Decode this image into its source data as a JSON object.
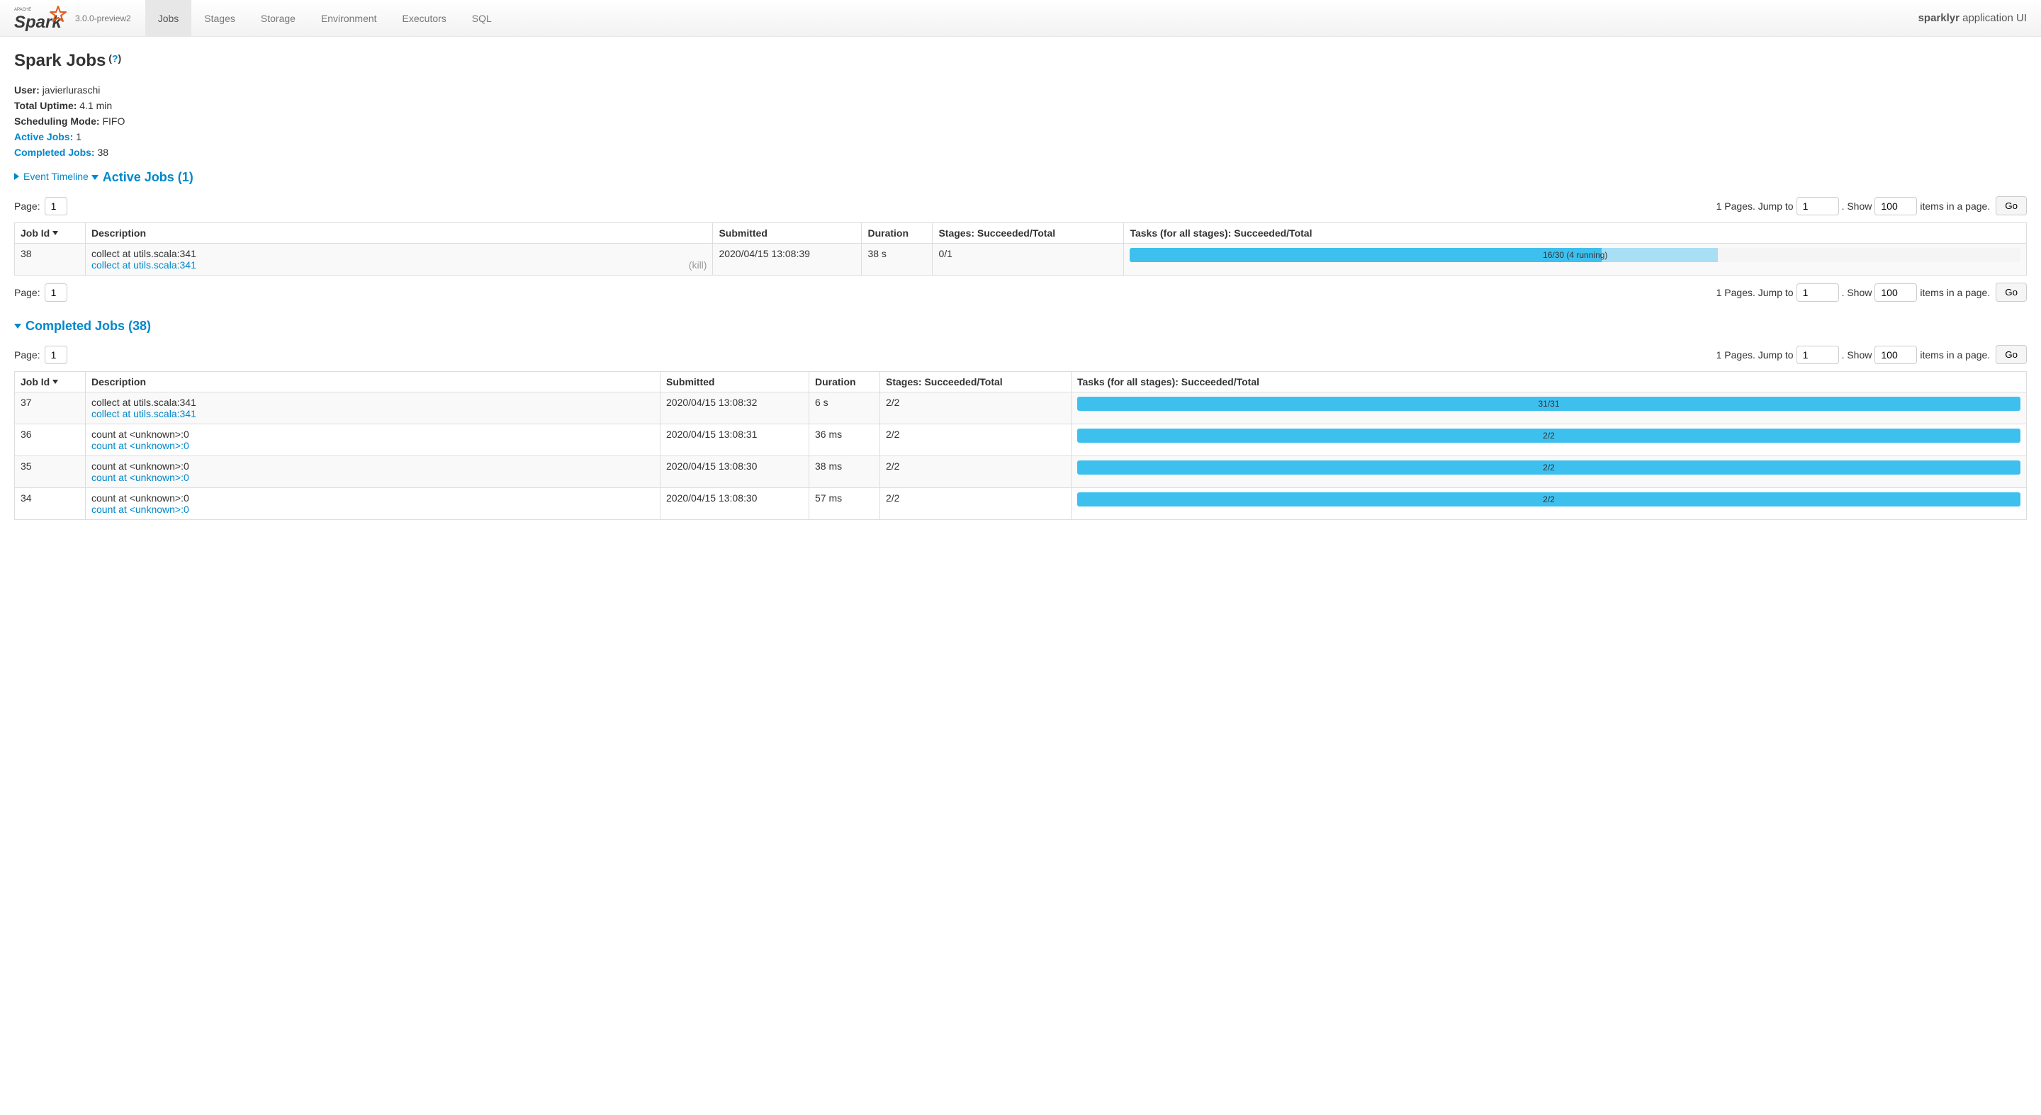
{
  "navbar": {
    "version": "3.0.0-preview2",
    "tabs": [
      {
        "label": "Jobs",
        "active": true
      },
      {
        "label": "Stages",
        "active": false
      },
      {
        "label": "Storage",
        "active": false
      },
      {
        "label": "Environment",
        "active": false
      },
      {
        "label": "Executors",
        "active": false
      },
      {
        "label": "SQL",
        "active": false
      }
    ],
    "app_name_bold": "sparklyr",
    "app_name_rest": " application UI"
  },
  "page": {
    "title": "Spark Jobs",
    "help": "?"
  },
  "meta": {
    "user_label": "User:",
    "user_value": "javierluraschi",
    "uptime_label": "Total Uptime:",
    "uptime_value": "4.1 min",
    "sched_label": "Scheduling Mode:",
    "sched_value": "FIFO",
    "active_label": "Active Jobs:",
    "active_value": "1",
    "completed_label": "Completed Jobs:",
    "completed_value": "38"
  },
  "timeline_link": "Event Timeline",
  "active_header": "Active Jobs (1)",
  "completed_header": "Completed Jobs (38)",
  "pagination": {
    "page_label": "Page:",
    "page_value": "1",
    "pages_text": "1 Pages. Jump to",
    "jump_value": "1",
    "show_label": ". Show",
    "show_value": "100",
    "items_label": "items in a page.",
    "go_label": "Go"
  },
  "columns": {
    "job_id": "Job Id",
    "description": "Description",
    "submitted": "Submitted",
    "duration": "Duration",
    "stages": "Stages: Succeeded/Total",
    "tasks": "Tasks (for all stages): Succeeded/Total"
  },
  "active_jobs": [
    {
      "id": "38",
      "desc_text": "collect at utils.scala:341",
      "desc_link": "collect at utils.scala:341",
      "kill": "(kill)",
      "submitted": "2020/04/15 13:08:39",
      "duration": "38 s",
      "stages": "0/1",
      "tasks_text": "16/30 (4 running)",
      "progress_done_pct": 53,
      "progress_running_pct": 13
    }
  ],
  "completed_jobs": [
    {
      "id": "37",
      "desc_text": "collect at utils.scala:341",
      "desc_link": "collect at utils.scala:341",
      "submitted": "2020/04/15 13:08:32",
      "duration": "6 s",
      "stages": "2/2",
      "tasks_text": "31/31",
      "progress_done_pct": 100
    },
    {
      "id": "36",
      "desc_text": "count at <unknown>:0",
      "desc_link": "count at <unknown>:0",
      "submitted": "2020/04/15 13:08:31",
      "duration": "36 ms",
      "stages": "2/2",
      "tasks_text": "2/2",
      "progress_done_pct": 100
    },
    {
      "id": "35",
      "desc_text": "count at <unknown>:0",
      "desc_link": "count at <unknown>:0",
      "submitted": "2020/04/15 13:08:30",
      "duration": "38 ms",
      "stages": "2/2",
      "tasks_text": "2/2",
      "progress_done_pct": 100
    },
    {
      "id": "34",
      "desc_text": "count at <unknown>:0",
      "desc_link": "count at <unknown>:0",
      "submitted": "2020/04/15 13:08:30",
      "duration": "57 ms",
      "stages": "2/2",
      "tasks_text": "2/2",
      "progress_done_pct": 100
    }
  ],
  "colors": {
    "link": "#08c",
    "progress_done": "#3ec0ee",
    "progress_running": "#a8dff4",
    "border": "#ddd"
  }
}
